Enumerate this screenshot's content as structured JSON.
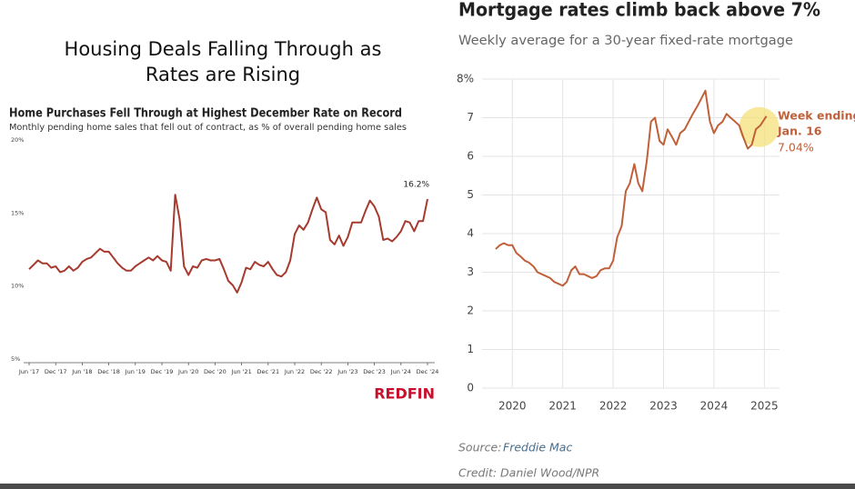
{
  "slide_title": [
    "Housing Deals Falling Through as",
    "Rates are Rising"
  ],
  "chart_data": [
    {
      "type": "line",
      "title": "Home Purchases Fell Through at Highest December Rate on Record",
      "subtitle": "Monthly pending home sales that fell out of contract, as % of overall pending home sales",
      "categories": [
        "Jun '17",
        null,
        null,
        null,
        null,
        null,
        "Dec '17",
        null,
        null,
        null,
        null,
        null,
        "Jun '18",
        null,
        null,
        null,
        null,
        null,
        "Dec '18",
        null,
        null,
        null,
        null,
        null,
        "Jun '19",
        null,
        null,
        null,
        null,
        null,
        "Dec '19",
        null,
        null,
        null,
        null,
        null,
        "Jun '20",
        null,
        null,
        null,
        null,
        null,
        "Dec '20",
        null,
        null,
        null,
        null,
        null,
        "Jun '21",
        null,
        null,
        null,
        null,
        null,
        "Dec '21",
        null,
        null,
        null,
        null,
        null,
        "Jun '22",
        null,
        null,
        null,
        null,
        null,
        "Dec '22",
        null,
        null,
        null,
        null,
        null,
        "Jun '23",
        null,
        null,
        null,
        null,
        null,
        "Dec '23",
        null,
        null,
        null,
        null,
        null,
        "Jun '24",
        null,
        null,
        null,
        null,
        null,
        "Dec '24"
      ],
      "values": [
        11.4,
        11.7,
        12.0,
        11.8,
        11.8,
        11.5,
        11.6,
        11.2,
        11.3,
        11.6,
        11.3,
        11.5,
        11.9,
        12.1,
        12.2,
        12.5,
        12.8,
        12.6,
        12.6,
        12.2,
        11.8,
        11.5,
        11.3,
        11.3,
        11.6,
        11.8,
        12.0,
        12.2,
        12.0,
        12.3,
        12.0,
        11.9,
        11.3,
        16.5,
        14.8,
        11.6,
        11.0,
        11.6,
        11.5,
        12.0,
        12.1,
        12.0,
        12.0,
        12.1,
        11.4,
        10.6,
        10.3,
        9.8,
        10.5,
        11.5,
        11.4,
        11.9,
        11.7,
        11.6,
        11.9,
        11.4,
        11.0,
        10.9,
        11.2,
        12.0,
        13.8,
        14.4,
        14.1,
        14.6,
        15.5,
        16.3,
        15.5,
        15.3,
        13.4,
        13.1,
        13.7,
        13.0,
        13.6,
        14.6,
        14.6,
        14.6,
        15.4,
        16.1,
        15.7,
        15.0,
        13.4,
        13.5,
        13.3,
        13.6,
        14.0,
        14.7,
        14.6,
        14.0,
        14.7,
        14.7,
        16.2
      ],
      "color": "#a63a2e",
      "ylim": [
        5,
        20
      ],
      "yticks": [
        {
          "value": 5,
          "label": "5%"
        },
        {
          "value": 10,
          "label": "10%"
        },
        {
          "value": 15,
          "label": "15%"
        },
        {
          "value": 20,
          "label": "20%"
        }
      ],
      "grid": false,
      "annotation": "16.2%",
      "logo": "REDFIN"
    },
    {
      "type": "line",
      "title": "Mortgage rates climb back above 7%",
      "subtitle": "Weekly average for a 30-year fixed-rate mortgage",
      "x": [
        2019.67,
        2019.75,
        2019.83,
        2019.92,
        2020.0,
        2020.08,
        2020.17,
        2020.25,
        2020.33,
        2020.42,
        2020.5,
        2020.58,
        2020.67,
        2020.75,
        2020.83,
        2020.92,
        2021.0,
        2021.08,
        2021.17,
        2021.25,
        2021.33,
        2021.42,
        2021.5,
        2021.58,
        2021.67,
        2021.75,
        2021.83,
        2021.92,
        2022.0,
        2022.08,
        2022.17,
        2022.25,
        2022.33,
        2022.42,
        2022.5,
        2022.58,
        2022.67,
        2022.75,
        2022.83,
        2022.92,
        2023.0,
        2023.08,
        2023.17,
        2023.25,
        2023.33,
        2023.42,
        2023.5,
        2023.58,
        2023.67,
        2023.75,
        2023.83,
        2023.92,
        2024.0,
        2024.08,
        2024.17,
        2024.25,
        2024.33,
        2024.42,
        2024.5,
        2024.58,
        2024.67,
        2024.75,
        2024.83,
        2024.92,
        2025.04
      ],
      "values": [
        3.6,
        3.7,
        3.75,
        3.7,
        3.7,
        3.5,
        3.4,
        3.3,
        3.25,
        3.15,
        3.0,
        2.95,
        2.9,
        2.85,
        2.75,
        2.7,
        2.65,
        2.75,
        3.05,
        3.15,
        2.95,
        2.95,
        2.9,
        2.85,
        2.9,
        3.05,
        3.1,
        3.1,
        3.3,
        3.9,
        4.2,
        5.1,
        5.3,
        5.8,
        5.3,
        5.1,
        5.9,
        6.9,
        7.0,
        6.4,
        6.3,
        6.7,
        6.5,
        6.3,
        6.6,
        6.7,
        6.9,
        7.1,
        7.3,
        7.5,
        7.7,
        6.9,
        6.6,
        6.8,
        6.9,
        7.1,
        7.0,
        6.9,
        6.8,
        6.5,
        6.2,
        6.3,
        6.7,
        6.8,
        7.04
      ],
      "color": "#c0603a",
      "xlim": [
        2019.4,
        2025.3
      ],
      "xticks": [
        2020,
        2021,
        2022,
        2023,
        2024,
        2025
      ],
      "ylim": [
        0,
        8
      ],
      "yticks": [
        0,
        1,
        2,
        3,
        4,
        5,
        6,
        7,
        {
          "value": 8,
          "label": "8%"
        }
      ],
      "grid": true,
      "annotation": {
        "lines": [
          "Week ending",
          "Jan. 16"
        ],
        "value_label": "7.04%"
      },
      "source_label": "Source:",
      "source": "Freddie Mac",
      "credit": "Credit: Daniel Wood/NPR"
    }
  ]
}
